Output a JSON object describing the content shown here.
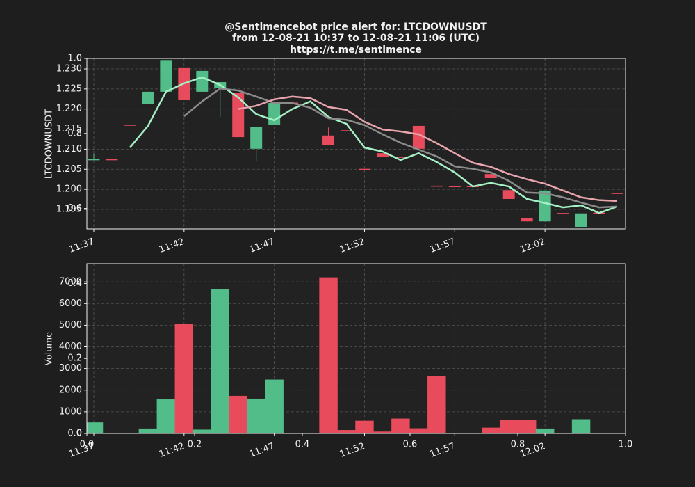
{
  "chart_data": [
    {
      "type": "candlestick",
      "title": "@Sentimencebot price alert for: LTCDOWNUSDT",
      "subtitle": "from 12-08-21 10:37 to 12-08-21 11:06 (UTC)",
      "link": "https://t.me/sentimence",
      "ylabel": "LTCDOWNUSDT",
      "categories": [
        "11:37",
        null,
        null,
        null,
        null,
        "11:42",
        null,
        null,
        null,
        null,
        "11:47",
        null,
        null,
        null,
        null,
        "11:52",
        null,
        null,
        null,
        null,
        "11:57",
        null,
        null,
        null,
        null,
        "12:02",
        null,
        null,
        null,
        null
      ],
      "open": [
        1.2074,
        1.2075,
        1.2161,
        1.2212,
        1.2243,
        1.2302,
        1.2243,
        1.2253,
        1.2241,
        1.2101,
        1.216,
        1.2216,
        null,
        1.2134,
        1.2147,
        1.2051,
        1.209,
        1.2081,
        1.2158,
        1.2009,
        1.2008,
        1.2008,
        1.2038,
        1.1998,
        1.1929,
        1.192,
        1.1941,
        1.1905,
        1.1942,
        1.1991
      ],
      "high": [
        1.2089,
        1.2075,
        1.2161,
        1.2243,
        1.2322,
        1.2302,
        1.2295,
        1.2267,
        1.2241,
        1.2156,
        1.2215,
        1.2216,
        null,
        1.2154,
        1.2147,
        1.2051,
        1.209,
        1.2081,
        1.2158,
        1.2009,
        1.2008,
        1.2008,
        1.204,
        1.1998,
        1.1929,
        1.1997,
        1.1941,
        1.194,
        1.1942,
        1.1991
      ],
      "low": [
        1.2072,
        1.2074,
        1.216,
        1.2212,
        1.2243,
        1.2222,
        1.2243,
        1.218,
        1.213,
        1.2071,
        1.216,
        1.2215,
        null,
        1.2111,
        1.2146,
        1.205,
        1.208,
        1.208,
        1.2101,
        1.2008,
        1.2007,
        1.2007,
        1.2028,
        1.1976,
        1.192,
        1.192,
        1.194,
        1.1905,
        1.1941,
        1.199
      ],
      "close": [
        1.2075,
        1.2074,
        1.216,
        1.2243,
        1.2322,
        1.2222,
        1.2295,
        1.2267,
        1.213,
        1.2156,
        1.2215,
        1.2215,
        null,
        1.2111,
        1.2146,
        1.205,
        1.208,
        1.208,
        1.2101,
        1.2008,
        1.2007,
        1.2007,
        1.2028,
        1.1976,
        1.192,
        1.1997,
        1.194,
        1.194,
        1.1941,
        1.199
      ],
      "up_color": "#53bd8a",
      "down_color": "#e84c5c",
      "series": [
        {
          "color": "#a6f0c6",
          "values": [
            null,
            null,
            1.2104,
            1.2158,
            1.2243,
            1.2264,
            1.2279,
            1.226,
            1.2229,
            1.2187,
            1.2172,
            1.22,
            1.2219,
            1.218,
            1.2163,
            1.2104,
            1.2094,
            1.2073,
            1.209,
            1.2068,
            1.2042,
            1.2007,
            1.2016,
            1.2007,
            1.1976,
            1.1966,
            1.1955,
            1.196,
            1.1941,
            1.1957
          ]
        },
        {
          "color": "#8c8c8c",
          "values": [
            null,
            null,
            null,
            null,
            null,
            1.2182,
            1.2219,
            1.2251,
            1.2246,
            1.2231,
            1.2215,
            1.2215,
            1.2203,
            1.2177,
            1.2173,
            1.216,
            1.2137,
            1.2116,
            1.2099,
            1.2082,
            1.2057,
            1.2051,
            1.2042,
            1.2021,
            1.1992,
            1.199,
            1.198,
            1.1967,
            1.1955,
            1.1957
          ]
        },
        {
          "color": "#e8a5ae",
          "values": [
            null,
            null,
            null,
            null,
            null,
            null,
            null,
            null,
            1.22,
            1.2208,
            1.2224,
            1.2231,
            1.2227,
            1.2205,
            1.2198,
            1.2168,
            1.2149,
            1.2144,
            1.2137,
            1.2115,
            1.209,
            1.2066,
            1.2056,
            1.2038,
            1.2025,
            1.2014,
            1.1997,
            1.198,
            1.1973,
            1.1971
          ]
        }
      ],
      "ylim": [
        1.19014,
        1.2326
      ],
      "yticks": [
        1.195,
        {
          "value": 1.2,
          "label": "1.200"
        },
        1.205,
        {
          "value": 1.21,
          "label": "1.210"
        },
        1.215,
        {
          "value": 1.22,
          "label": "1.220"
        },
        1.225,
        {
          "value": 1.23,
          "label": "1.230"
        }
      ],
      "grid": true
    },
    {
      "type": "bar",
      "ylabel": "Volume",
      "categories": [
        "11:37",
        null,
        null,
        null,
        null,
        "11:42",
        null,
        null,
        null,
        null,
        "11:47",
        null,
        null,
        null,
        null,
        "11:52",
        null,
        null,
        null,
        null,
        "11:57",
        null,
        null,
        null,
        null,
        "12:02",
        null,
        null,
        null,
        null
      ],
      "values": [
        500,
        null,
        null,
        220,
        1570,
        5050,
        170,
        6650,
        1730,
        1600,
        2480,
        null,
        null,
        7200,
        150,
        580,
        80,
        680,
        230,
        2650,
        null,
        null,
        260,
        630,
        630,
        220,
        null,
        650,
        null,
        null
      ],
      "colors": [
        "#53bd8a",
        null,
        null,
        "#53bd8a",
        "#53bd8a",
        "#e84c5c",
        "#53bd8a",
        "#53bd8a",
        "#e84c5c",
        "#53bd8a",
        "#53bd8a",
        null,
        null,
        "#e84c5c",
        "#e84c5c",
        "#e84c5c",
        "#e84c5c",
        "#e84c5c",
        "#e84c5c",
        "#e84c5c",
        null,
        null,
        "#e84c5c",
        "#e84c5c",
        "#e84c5c",
        "#53bd8a",
        null,
        "#53bd8a",
        null,
        null
      ],
      "ylim": [
        0,
        7840
      ],
      "yticks": [
        0,
        1000,
        2000,
        3000,
        4000,
        5000,
        6000,
        7000
      ],
      "grid": true
    },
    {
      "type": "axes",
      "xlim": [
        0,
        1
      ],
      "ylim": [
        0,
        1
      ],
      "xticks": [
        {
          "value": 0,
          "label": "0.0"
        },
        0.2,
        0.4,
        0.6,
        0.8,
        {
          "value": 1,
          "label": "1.0"
        }
      ],
      "yticks": [
        {
          "value": 0,
          "label": "0.0"
        },
        0.2,
        0.4,
        0.6,
        0.8,
        {
          "value": 1,
          "label": "1.0"
        }
      ]
    }
  ]
}
